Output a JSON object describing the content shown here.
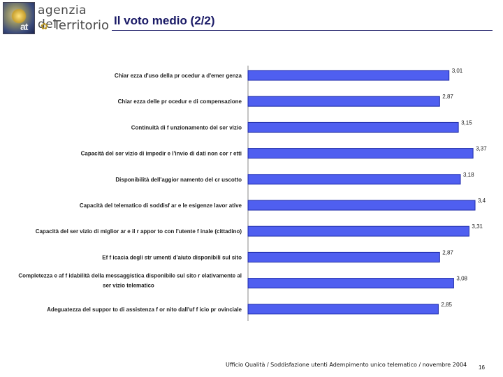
{
  "header": {
    "logo_line1": "agenzia del",
    "logo_line2": "Territorio",
    "logo_mark": "at",
    "title": "Il voto medio (2/2)"
  },
  "footer": {
    "text": "Ufficio Qualità / Soddisfazione utenti Adempimento unico telematico / novembre 2004",
    "page_number": "16"
  },
  "colors": {
    "bar_fill": "#4f5ff0",
    "bar_edge": "#1c2aa8",
    "title": "#1a1a66"
  },
  "chart_data": {
    "type": "bar",
    "orientation": "horizontal",
    "grid": false,
    "legend": "none",
    "xlim": [
      0,
      3.4
    ],
    "categories": [
      [
        "Chiar ezza d'uso della pr ocedur a d'emer genza"
      ],
      [
        "Chiar ezza delle pr ocedur e di compensazione"
      ],
      [
        "Continuità di f unzionamento del ser vizio"
      ],
      [
        "Capacità del ser vizio di impedir e l'invio di dati non cor r etti"
      ],
      [
        "Disponibilità dell'aggior namento del cr uscotto"
      ],
      [
        "Capacità del telematico di soddisf ar e le esigenze lavor ative"
      ],
      [
        "Capacità del ser vizio di miglior ar e il r appor to con l'utente f inale (cittadino)"
      ],
      [
        "Ef f icacia degli str umenti d'aiuto disponibili sul sito"
      ],
      [
        "Completezza e af f idabilità della messaggistica disponibile sul sito r elativamente al",
        "ser vizio telematico"
      ],
      [
        "Adeguatezza del suppor to di assistenza f or nito dall'uf f icio pr ovinciale"
      ]
    ],
    "values": [
      3.01,
      2.87,
      3.15,
      3.37,
      3.18,
      3.4,
      3.31,
      2.87,
      3.08,
      2.85
    ],
    "value_labels": [
      "3,01",
      "2,87",
      "3,15",
      "3,37",
      "3,18",
      "3,4",
      "3,31",
      "2,87",
      "3,08",
      "2,85"
    ]
  }
}
